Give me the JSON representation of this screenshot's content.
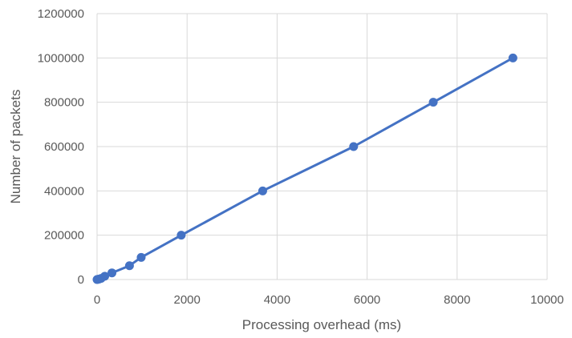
{
  "chart_data": {
    "type": "scatter",
    "title": "",
    "xlabel": "Processing overhead (ms)",
    "ylabel": "Number of packets",
    "xlim": [
      0,
      10000
    ],
    "ylim": [
      0,
      1200000
    ],
    "xticks": [
      "0",
      "2000",
      "4000",
      "6000",
      "8000",
      "10000"
    ],
    "yticks": [
      "0",
      "200000",
      "400000",
      "600000",
      "800000",
      "1000000",
      "1200000"
    ],
    "grid": true,
    "legend": "none",
    "line_color": "#4472C4",
    "marker_color": "#4472C4",
    "grid_color": "#D9D9D9",
    "series": [
      {
        "x": [
          0,
          15,
          40,
          90,
          170,
          330,
          720,
          980,
          1870,
          3680,
          5700,
          7470,
          9240
        ],
        "y": [
          0,
          1000,
          2000,
          5000,
          15000,
          30000,
          62500,
          100000,
          200000,
          400000,
          600000,
          800000,
          1000000
        ]
      }
    ]
  }
}
